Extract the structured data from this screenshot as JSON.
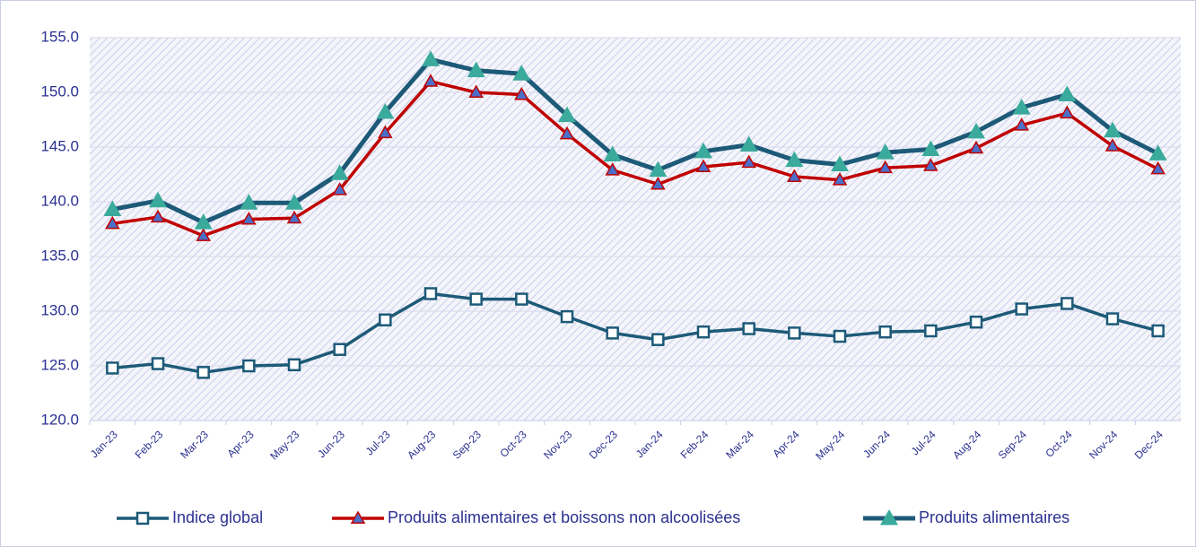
{
  "chart_data": {
    "type": "line",
    "categories": [
      "Jan-23",
      "Feb-23",
      "Mar-23",
      "Apr-23",
      "May-23",
      "Jun-23",
      "Jul-23",
      "Aug-23",
      "Sep-23",
      "Oct-23",
      "Nov-23",
      "Dec-23",
      "Jan-24",
      "Feb-24",
      "Mar-24",
      "Apr-24",
      "May-24",
      "Jun-24",
      "Jul-24",
      "Aug-24",
      "Sep-24",
      "Oct-24",
      "Nov-24",
      "Dec-24"
    ],
    "series": [
      {
        "name": "Indice global",
        "color": "#1d5a78",
        "marker": "square",
        "marker_color": "#ffffff",
        "values": [
          124.8,
          125.2,
          124.4,
          125.0,
          125.1,
          126.5,
          129.2,
          131.6,
          131.1,
          131.1,
          129.5,
          128.0,
          127.4,
          128.1,
          128.4,
          128.0,
          127.7,
          128.1,
          128.2,
          129.0,
          130.2,
          130.7,
          129.3,
          128.2
        ]
      },
      {
        "name": "Produits alimentaires et boissons non alcoolisées",
        "color": "#c00000",
        "marker": "triangle",
        "marker_color": "#4a6fc8",
        "values": [
          138.0,
          138.6,
          136.9,
          138.4,
          138.5,
          141.1,
          146.3,
          151.0,
          150.0,
          149.8,
          146.2,
          142.9,
          141.6,
          143.2,
          143.6,
          142.3,
          142.0,
          143.1,
          143.3,
          144.9,
          147.0,
          148.1,
          145.1,
          143.0
        ]
      },
      {
        "name": "Produits alimentaires",
        "color": "#1d5a78",
        "marker": "triangle",
        "marker_color": "#3aaa9c",
        "values": [
          139.3,
          140.1,
          138.1,
          139.9,
          139.9,
          142.6,
          148.2,
          153.0,
          152.0,
          151.7,
          147.9,
          144.3,
          142.9,
          144.6,
          145.2,
          143.8,
          143.4,
          144.5,
          144.8,
          146.4,
          148.6,
          149.8,
          146.5,
          144.4
        ]
      }
    ],
    "ylim": [
      120,
      155
    ],
    "yticks": [
      {
        "value": 120,
        "label": "120.0"
      },
      {
        "value": 125,
        "label": "125.0"
      },
      {
        "value": 130,
        "label": "130.0"
      },
      {
        "value": 135,
        "label": "135.0"
      },
      {
        "value": 140,
        "label": "140.0"
      },
      {
        "value": 145,
        "label": "145.0"
      },
      {
        "value": 150,
        "label": "150.0"
      },
      {
        "value": 155,
        "label": "155.0"
      }
    ],
    "grid": true,
    "legend": "bottom"
  }
}
